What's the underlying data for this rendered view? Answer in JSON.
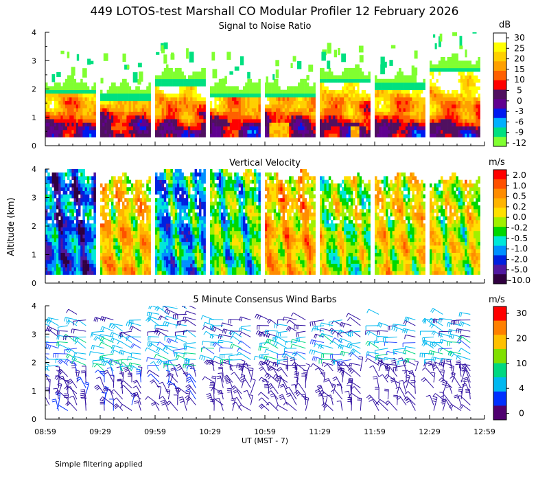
{
  "page": {
    "title": "449 LOTOS-test Marshall CO Modular Profiler 12 February 2026",
    "ylabel": "Altitude (km)",
    "xlabel": "UT  (MST - 7)",
    "footnote": "Simple filtering applied"
  },
  "chart_data": [
    {
      "type": "heatmap",
      "title": "Signal to Noise Ratio",
      "unit": "dB",
      "ylim": [
        0,
        4
      ],
      "yticks": [
        "0",
        "1",
        "2",
        "3",
        "4"
      ],
      "xticks": [
        "08:59",
        "09:29",
        "09:59",
        "10:29",
        "10:59",
        "11:29",
        "11:59",
        "12:29",
        "12:59"
      ],
      "colorbar": {
        "labels": [
          "30",
          "25",
          "20",
          "15",
          "10",
          "5",
          "0",
          "-3",
          "-6",
          "-9",
          "-12"
        ],
        "colors": [
          "#ffffff",
          "#ffff00",
          "#ffd000",
          "#ffa000",
          "#ff6000",
          "#ff0000",
          "#501060",
          "#600090",
          "#0018f0",
          "#00b0ff",
          "#00e080",
          "#80ff30"
        ]
      },
      "segments": [
        {
          "start": "08:59",
          "end": "09:26",
          "top_km": 2.2,
          "base_km": 0.3
        },
        {
          "start": "09:29",
          "end": "09:56",
          "top_km": 2.05,
          "base_km": 0.3
        },
        {
          "start": "09:59",
          "end": "10:26",
          "top_km": 2.55,
          "base_km": 0.3
        },
        {
          "start": "10:29",
          "end": "10:56",
          "top_km": 2.1,
          "base_km": 0.3
        },
        {
          "start": "10:59",
          "end": "11:26",
          "top_km": 2.1,
          "base_km": 0.3
        },
        {
          "start": "11:29",
          "end": "11:56",
          "top_km": 2.6,
          "base_km": 0.3
        },
        {
          "start": "11:59",
          "end": "12:26",
          "top_km": 2.4,
          "base_km": 0.3
        },
        {
          "start": "12:29",
          "end": "12:56",
          "top_km": 3.0,
          "base_km": 0.3
        }
      ]
    },
    {
      "type": "heatmap",
      "title": "Vertical Velocity",
      "unit": "m/s",
      "ylim": [
        0,
        4
      ],
      "yticks": [
        "0",
        "1",
        "2",
        "3",
        "4"
      ],
      "xticks": [
        "08:59",
        "09:29",
        "09:59",
        "10:29",
        "10:59",
        "11:29",
        "11:59",
        "12:29",
        "12:59"
      ],
      "colorbar": {
        "labels": [
          "2.0",
          "1.0",
          "0.5",
          "0.2",
          "0.0",
          "-0.2",
          "-0.5",
          "-1.0",
          "-2.0",
          "-5.0",
          "-10.0"
        ],
        "colors": [
          "#ff0000",
          "#ff5000",
          "#ff8c00",
          "#ffb400",
          "#ffe000",
          "#a0f000",
          "#00d800",
          "#00e8d8",
          "#0090ff",
          "#0020e0",
          "#5018a0",
          "#300040"
        ]
      },
      "segments": [
        {
          "start": "08:59",
          "end": "09:26",
          "top_km": 3.9,
          "base_km": 0.3
        },
        {
          "start": "09:29",
          "end": "09:56",
          "top_km": 3.6,
          "base_km": 0.3
        },
        {
          "start": "09:59",
          "end": "10:26",
          "top_km": 3.9,
          "base_km": 0.3
        },
        {
          "start": "10:29",
          "end": "10:56",
          "top_km": 3.9,
          "base_km": 0.3
        },
        {
          "start": "10:59",
          "end": "11:26",
          "top_km": 3.7,
          "base_km": 0.3
        },
        {
          "start": "11:29",
          "end": "11:56",
          "top_km": 3.6,
          "base_km": 0.3
        },
        {
          "start": "11:59",
          "end": "12:26",
          "top_km": 3.7,
          "base_km": 0.3
        },
        {
          "start": "12:29",
          "end": "12:56",
          "top_km": 3.6,
          "base_km": 0.3
        }
      ]
    },
    {
      "type": "scatter",
      "title": "5 Minute Consensus Wind Barbs",
      "unit": "m/s",
      "ylim": [
        0,
        4
      ],
      "yticks": [
        "0",
        "1",
        "2",
        "3",
        "4"
      ],
      "xticks": [
        "08:59",
        "09:29",
        "09:59",
        "10:29",
        "10:59",
        "11:29",
        "11:59",
        "12:29",
        "12:59"
      ],
      "colorbar": {
        "labels": [
          "30",
          "20",
          "10",
          "4",
          "0"
        ],
        "colors": [
          "#ff0000",
          "#ff8000",
          "#ffc000",
          "#80e000",
          "#00d880",
          "#00b8f0",
          "#0030ff",
          "#500070"
        ]
      },
      "barb_times": [
        "08:59",
        "09:04",
        "09:09",
        "09:14",
        "09:19",
        "09:29",
        "09:34",
        "09:39",
        "09:44",
        "09:49",
        "09:59",
        "10:04",
        "10:09",
        "10:14",
        "10:19",
        "10:29",
        "10:34",
        "10:39",
        "10:44",
        "10:49",
        "10:59",
        "11:04",
        "11:09",
        "11:14",
        "11:19",
        "11:29",
        "11:34",
        "11:39",
        "11:44",
        "11:49",
        "11:59",
        "12:04",
        "12:09",
        "12:14",
        "12:19",
        "12:29",
        "12:34",
        "12:39",
        "12:44",
        "12:49"
      ],
      "barb_altitudes_km": [
        0.3,
        0.5,
        0.7,
        0.9,
        1.1,
        1.3,
        1.5,
        1.7,
        1.9,
        2.1,
        2.3,
        2.5,
        2.7,
        2.9,
        3.1,
        3.3,
        3.5,
        3.7,
        3.9
      ]
    }
  ]
}
